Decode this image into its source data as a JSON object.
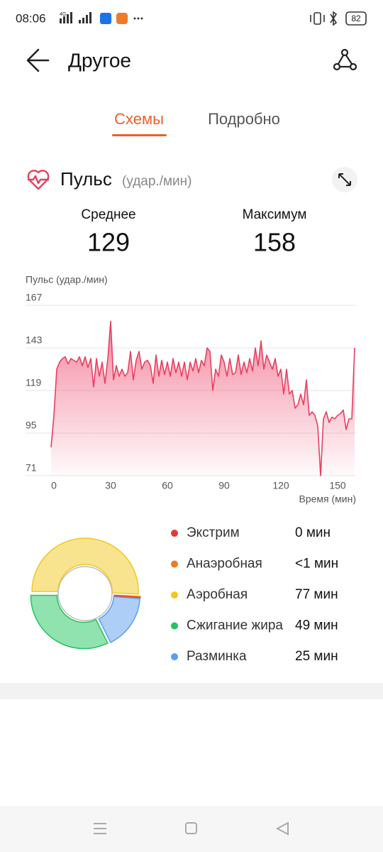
{
  "status_bar": {
    "time": "08:06",
    "network": "4G",
    "battery": "82"
  },
  "header": {
    "title": "Другое"
  },
  "tabs": [
    "Схемы",
    "Подробно"
  ],
  "section": {
    "title": "Пульс",
    "unit": "(удар./мин)"
  },
  "stats": [
    {
      "label": "Среднее",
      "value": "129"
    },
    {
      "label": "Максимум",
      "value": "158"
    }
  ],
  "chart_data": [
    {
      "type": "line",
      "y_label": "Пульс (удар./мин)",
      "x_label": "Время (мин)",
      "x": [
        -1.5,
        0,
        1.5,
        3,
        4.5,
        6,
        7.5,
        9,
        10.5,
        12,
        13.5,
        15,
        16.5,
        18,
        19.5,
        21,
        22.5,
        24,
        25.5,
        27,
        28.5,
        30,
        31.5,
        33,
        34.5,
        36,
        37.5,
        39,
        40.5,
        42,
        43.5,
        45,
        46.5,
        48,
        49.5,
        51,
        52.5,
        54,
        55.5,
        57,
        58.5,
        60,
        61.5,
        63,
        64.5,
        66,
        67.5,
        69,
        70.5,
        72,
        73.5,
        75,
        76.5,
        78,
        79.5,
        81,
        82.5,
        84,
        85.5,
        87,
        88.5,
        90,
        91.5,
        93,
        94.5,
        96,
        97.5,
        99,
        100.5,
        102,
        103.5,
        105,
        106.5,
        108,
        109.5,
        111,
        112.5,
        114,
        115.5,
        117,
        118.5,
        120,
        121.5,
        123,
        124.5,
        126,
        127.5,
        129,
        130.5,
        132,
        133.5,
        135,
        136.5,
        138,
        139.5,
        141,
        142.5,
        144,
        145.5,
        147,
        148.5,
        150,
        151.5,
        153,
        154.5,
        156,
        157.5,
        159
      ],
      "series": [
        {
          "color": "#e8405f",
          "values": [
            87,
            105,
            131,
            135,
            137,
            138,
            134,
            137,
            136,
            135,
            138,
            133,
            138,
            132,
            137,
            121,
            137,
            127,
            135,
            123,
            137,
            158,
            125,
            133,
            127,
            131,
            127,
            129,
            141,
            125,
            136,
            141,
            131,
            135,
            136,
            133,
            123,
            139,
            127,
            136,
            128,
            135,
            127,
            137,
            129,
            135,
            127,
            135,
            125,
            135,
            130,
            137,
            129,
            136,
            133,
            143,
            141,
            119,
            131,
            127,
            139,
            135,
            127,
            137,
            128,
            129,
            139,
            128,
            135,
            129,
            137,
            130,
            143,
            133,
            147,
            131,
            139,
            135,
            131,
            137,
            127,
            131,
            117,
            131,
            117,
            119,
            109,
            111,
            117,
            111,
            125,
            105,
            107,
            105,
            99,
            71,
            103,
            107,
            101,
            104,
            103,
            105,
            106,
            108,
            97,
            103,
            103,
            143
          ]
        }
      ],
      "xlim": [
        -1.5,
        159
      ],
      "xticks": [
        0,
        30,
        60,
        90,
        120,
        150
      ],
      "ylim": [
        71,
        167
      ],
      "yticks": [
        71,
        95,
        119,
        143,
        167
      ],
      "grid": true
    },
    {
      "type": "pie",
      "categories": [
        "Экстрим",
        "Анаэробная",
        "Аэробная",
        "Сжигание жира",
        "Разминка"
      ],
      "values": [
        0,
        0.5,
        77,
        49,
        25
      ],
      "value_labels": [
        "0 мин",
        "<1 мин",
        "77 мин",
        "49 мин",
        "25 мин"
      ],
      "colors": [
        "#e53935",
        "#ee7a22",
        "#f2c81f",
        "#22c55e",
        "#5b9ef0"
      ],
      "donut": true
    }
  ]
}
